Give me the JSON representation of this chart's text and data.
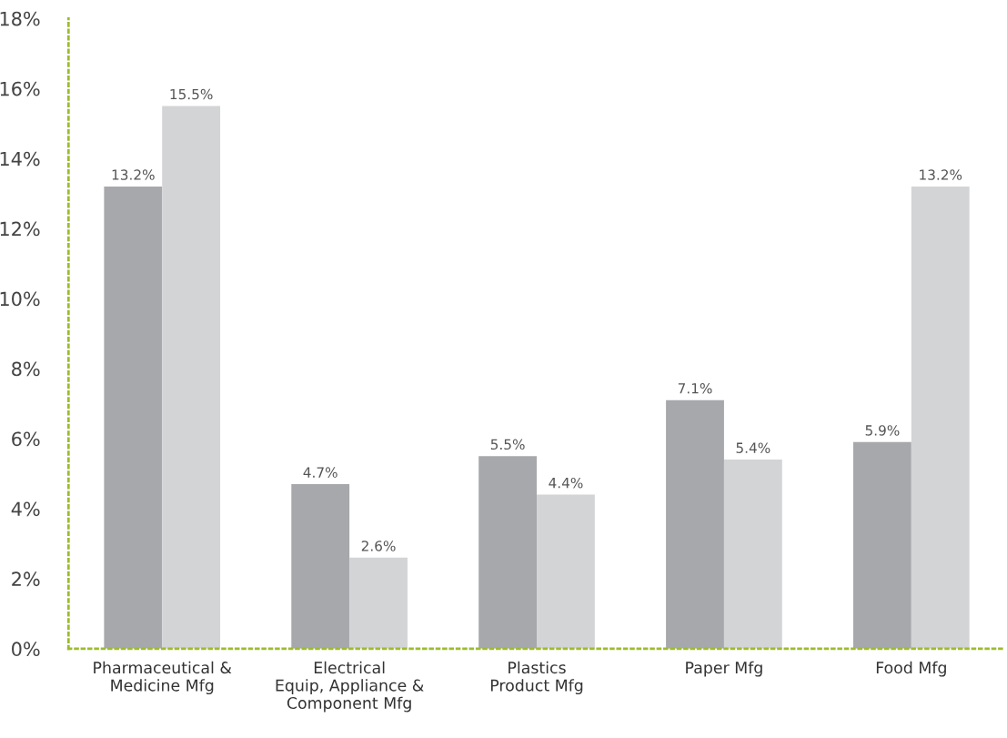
{
  "chart_data": {
    "type": "bar",
    "categories": [
      "Pharmaceutical &\nMedicine Mfg",
      "Electrical\nEquip, Appliance &\nComponent Mfg",
      "Plastics\nProduct Mfg",
      "Paper Mfg",
      "Food Mfg"
    ],
    "series": [
      {
        "color": "#a7a8ab",
        "values": [
          13.2,
          4.7,
          5.5,
          7.1,
          5.9
        ],
        "value_labels": [
          "13.2%",
          "4.7%",
          "5.5%",
          "7.1%",
          "5.9%"
        ]
      },
      {
        "color": "#d3d4d6",
        "values": [
          15.5,
          2.6,
          4.4,
          5.4,
          13.2
        ],
        "value_labels": [
          "15.5%",
          "2.6%",
          "4.4%",
          "5.4%",
          "13.2%"
        ]
      }
    ],
    "ylim": [
      0,
      18
    ],
    "yticks": [
      {
        "value": 0,
        "label": "0%"
      },
      {
        "value": 2,
        "label": "2%"
      },
      {
        "value": 4,
        "label": "4%"
      },
      {
        "value": 6,
        "label": "6%"
      },
      {
        "value": 8,
        "label": "8%"
      },
      {
        "value": 10,
        "label": "10%"
      },
      {
        "value": 12,
        "label": "12%"
      },
      {
        "value": 14,
        "label": "14%"
      },
      {
        "value": 16,
        "label": "16%"
      },
      {
        "value": 18,
        "label": "18%"
      }
    ],
    "grid": false
  }
}
